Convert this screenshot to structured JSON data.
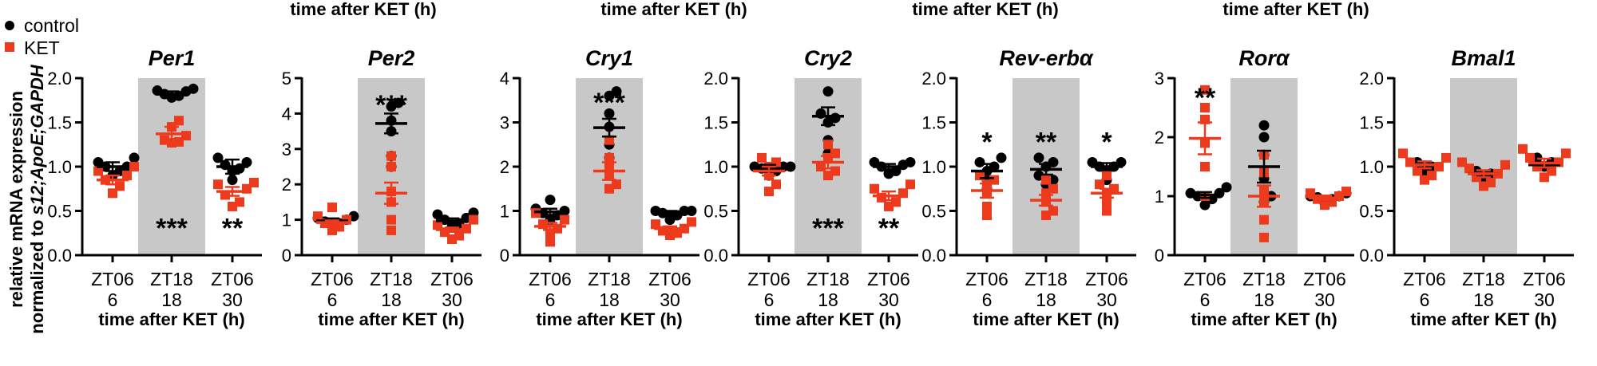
{
  "colors": {
    "control": "#000000",
    "KET": "#ee3a1c",
    "night_shading": "#c8c8c8"
  },
  "legend": {
    "control": "control",
    "KET": "KET"
  },
  "y_axis_label": {
    "line1": "relative mRNA expression",
    "line2_prefix": "normalized to ",
    "line2_italic": "s12;ApoE;GAPDH"
  },
  "top_captions": [
    "time after KET (h)",
    "time after KET (h)",
    "time after KET (h)",
    "time after KET (h)"
  ],
  "chart_data": [
    {
      "type": "scatter",
      "title": "Per1",
      "categories": [
        "ZT06",
        "ZT18",
        "ZT06"
      ],
      "hours": [
        "6",
        "18",
        "30"
      ],
      "xlabel": "time after KET (h)",
      "ylim": [
        0,
        2.0
      ],
      "yticks": [
        "0.0",
        "0.5",
        "1.0",
        "1.5",
        "2.0"
      ],
      "shaded_category": 1,
      "series": [
        {
          "name": "control",
          "mean": [
            1.0,
            1.82,
            1.0
          ],
          "sem": [
            0.05,
            0.03,
            0.08
          ],
          "points": [
            [
              0.9,
              0.95,
              1.0,
              1.0,
              1.05,
              1.1
            ],
            [
              1.78,
              1.8,
              1.82,
              1.85,
              1.86,
              1.88
            ],
            [
              0.85,
              0.95,
              0.98,
              1.02,
              1.05,
              1.1
            ]
          ]
        },
        {
          "name": "KET",
          "mean": [
            0.85,
            1.37,
            0.72
          ],
          "sem": [
            0.05,
            0.08,
            0.05
          ],
          "points": [
            [
              0.7,
              0.78,
              0.85,
              0.9,
              0.95,
              1.0
            ],
            [
              1.27,
              1.28,
              1.3,
              1.35,
              1.45,
              1.52
            ],
            [
              0.55,
              0.6,
              0.68,
              0.75,
              0.8,
              0.82
            ]
          ]
        }
      ],
      "annotations": [
        {
          "category": 1,
          "text": "***",
          "y": 0.33
        },
        {
          "category": 2,
          "text": "**",
          "y": 0.33
        }
      ]
    },
    {
      "type": "scatter",
      "title": "Per2",
      "categories": [
        "ZT06",
        "ZT18",
        "ZT06"
      ],
      "hours": [
        "6",
        "18",
        "30"
      ],
      "xlabel": "time after KET (h)",
      "ylim": [
        0,
        5
      ],
      "yticks": [
        "0",
        "1",
        "2",
        "3",
        "4",
        "5"
      ],
      "shaded_category": 1,
      "series": [
        {
          "name": "control",
          "mean": [
            0.97,
            3.72,
            0.97
          ],
          "sem": [
            0.07,
            0.28,
            0.07
          ],
          "points": [
            [
              0.8,
              0.9,
              0.95,
              1.0,
              1.05,
              1.1
            ],
            [
              2.5,
              2.8,
              3.5,
              3.8,
              4.2,
              4.3
            ],
            [
              0.8,
              0.9,
              1.0,
              1.05,
              1.15,
              1.2
            ]
          ]
        },
        {
          "name": "KET",
          "mean": [
            0.92,
            1.75,
            0.72
          ],
          "sem": [
            0.06,
            0.3,
            0.06
          ],
          "points": [
            [
              0.7,
              0.8,
              0.9,
              1.0,
              1.1,
              1.35
            ],
            [
              0.7,
              1.0,
              1.5,
              1.8,
              2.5,
              2.8
            ],
            [
              0.45,
              0.55,
              0.65,
              0.75,
              0.85,
              1.0
            ]
          ]
        }
      ],
      "annotations": [
        {
          "category": 1,
          "text": "***",
          "y": 4.3
        }
      ]
    },
    {
      "type": "scatter",
      "title": "Cry1",
      "categories": [
        "ZT06",
        "ZT18",
        "ZT06"
      ],
      "hours": [
        "6",
        "18",
        "30"
      ],
      "xlabel": "time after KET (h)",
      "ylim": [
        0,
        4
      ],
      "yticks": [
        "0",
        "1",
        "2",
        "3",
        "4"
      ],
      "shaded_category": 1,
      "series": [
        {
          "name": "control",
          "mean": [
            0.98,
            2.88,
            0.95
          ],
          "sem": [
            0.07,
            0.2,
            0.05
          ],
          "points": [
            [
              0.8,
              0.9,
              0.95,
              1.0,
              1.05,
              1.25
            ],
            [
              2.2,
              2.5,
              2.9,
              3.2,
              3.6,
              3.7
            ],
            [
              0.8,
              0.9,
              0.95,
              1.0,
              1.0,
              1.0
            ]
          ]
        },
        {
          "name": "KET",
          "mean": [
            0.65,
            1.9,
            0.6
          ],
          "sem": [
            0.08,
            0.2,
            0.05
          ],
          "points": [
            [
              0.3,
              0.5,
              0.6,
              0.7,
              0.8,
              0.95
            ],
            [
              1.5,
              1.6,
              1.8,
              2.0,
              2.2,
              2.6
            ],
            [
              0.45,
              0.5,
              0.55,
              0.6,
              0.7,
              0.75
            ]
          ]
        }
      ],
      "annotations": [
        {
          "category": 1,
          "text": "***",
          "y": 3.5
        }
      ]
    },
    {
      "type": "scatter",
      "title": "Cry2",
      "categories": [
        "ZT06",
        "ZT18",
        "ZT06"
      ],
      "hours": [
        "6",
        "18",
        "30"
      ],
      "xlabel": "time after KET (h)",
      "ylim": [
        0,
        2.0
      ],
      "yticks": [
        "0.0",
        "0.5",
        "1.0",
        "1.5",
        "2.0"
      ],
      "shaded_category": 1,
      "series": [
        {
          "name": "control",
          "mean": [
            0.98,
            1.57,
            1.0
          ],
          "sem": [
            0.04,
            0.1,
            0.03
          ],
          "points": [
            [
              0.9,
              0.95,
              0.98,
              1.0,
              1.0,
              1.0
            ],
            [
              1.15,
              1.3,
              1.5,
              1.55,
              1.6,
              1.85
            ],
            [
              0.92,
              0.95,
              1.0,
              1.02,
              1.05,
              1.05
            ]
          ]
        },
        {
          "name": "KET",
          "mean": [
            0.95,
            1.05,
            0.67
          ],
          "sem": [
            0.05,
            0.07,
            0.05
          ],
          "points": [
            [
              0.72,
              0.8,
              0.9,
              1.0,
              1.05,
              1.1
            ],
            [
              0.9,
              0.95,
              1.0,
              1.1,
              1.15,
              1.25
            ],
            [
              0.55,
              0.6,
              0.65,
              0.7,
              0.75,
              0.8
            ]
          ]
        }
      ],
      "annotations": [
        {
          "category": 1,
          "text": "***",
          "y": 0.33
        },
        {
          "category": 2,
          "text": "**",
          "y": 0.33
        }
      ]
    },
    {
      "type": "scatter",
      "title": "Rev-erbα",
      "categories": [
        "ZT06",
        "ZT18",
        "ZT06"
      ],
      "hours": [
        "6",
        "18",
        "30"
      ],
      "xlabel": "time after KET (h)",
      "ylim": [
        0,
        2.0
      ],
      "yticks": [
        "0.0",
        "0.5",
        "1.0",
        "1.5",
        "2.0"
      ],
      "shaded_category": 1,
      "series": [
        {
          "name": "control",
          "mean": [
            0.95,
            0.97,
            1.0
          ],
          "sem": [
            0.08,
            0.06,
            0.04
          ],
          "points": [
            [
              0.75,
              0.85,
              0.95,
              1.0,
              1.05,
              1.1
            ],
            [
              0.8,
              0.85,
              0.9,
              1.0,
              1.05,
              1.1
            ],
            [
              0.85,
              0.95,
              1.0,
              1.0,
              1.05,
              1.05
            ]
          ]
        },
        {
          "name": "KET",
          "mean": [
            0.73,
            0.62,
            0.7
          ],
          "sem": [
            0.08,
            0.06,
            0.05
          ],
          "points": [
            [
              0.45,
              0.55,
              0.7,
              0.8,
              0.85,
              0.9
            ],
            [
              0.45,
              0.5,
              0.6,
              0.7,
              0.75,
              0.85
            ],
            [
              0.5,
              0.6,
              0.7,
              0.75,
              0.8,
              0.9
            ]
          ]
        }
      ],
      "annotations": [
        {
          "category": 0,
          "text": "*",
          "y": 1.3
        },
        {
          "category": 1,
          "text": "**",
          "y": 1.3
        },
        {
          "category": 2,
          "text": "*",
          "y": 1.3
        }
      ]
    },
    {
      "type": "scatter",
      "title": "Rorα",
      "categories": [
        "ZT06",
        "ZT18",
        "ZT06"
      ],
      "hours": [
        "6",
        "18",
        "30"
      ],
      "xlabel": "time after KET (h)",
      "ylim": [
        0,
        3
      ],
      "yticks": [
        "0",
        "1",
        "2",
        "3"
      ],
      "shaded_category": 1,
      "series": [
        {
          "name": "control",
          "mean": [
            1.02,
            1.5,
            0.97
          ],
          "sem": [
            0.05,
            0.27,
            0.04
          ],
          "points": [
            [
              0.85,
              0.95,
              1.0,
              1.05,
              1.05,
              1.15
            ],
            [
              0.9,
              1.0,
              1.3,
              1.7,
              2.0,
              2.2
            ],
            [
              0.88,
              0.95,
              0.98,
              1.0,
              1.0,
              1.05
            ]
          ]
        },
        {
          "name": "KET",
          "mean": [
            1.98,
            1.0,
            0.97
          ],
          "sem": [
            0.27,
            0.18,
            0.04
          ],
          "points": [
            [
              1.0,
              1.5,
              1.9,
              2.3,
              2.5,
              2.8
            ],
            [
              0.3,
              0.6,
              0.9,
              1.1,
              1.4,
              1.7
            ],
            [
              0.85,
              0.9,
              0.95,
              1.0,
              1.05,
              1.08
            ]
          ]
        }
      ],
      "annotations": [
        {
          "category": 0,
          "text": "**",
          "y": 2.7
        }
      ]
    },
    {
      "type": "scatter",
      "title": "Bmal1",
      "categories": [
        "ZT06",
        "ZT18",
        "ZT06"
      ],
      "hours": [
        "6",
        "18",
        "30"
      ],
      "xlabel": "time after KET (h)",
      "ylim": [
        0,
        2.0
      ],
      "yticks": [
        "0.0",
        "0.5",
        "1.0",
        "1.5",
        "2.0"
      ],
      "shaded_category": 1,
      "series": [
        {
          "name": "control",
          "mean": [
            1.02,
            0.92,
            1.02
          ],
          "sem": [
            0.03,
            0.03,
            0.03
          ],
          "points": [
            [
              0.95,
              1.0,
              1.05
            ],
            [
              0.88,
              0.92,
              0.95
            ],
            [
              1.0,
              1.05,
              1.1
            ]
          ]
        },
        {
          "name": "KET",
          "mean": [
            1.02,
            0.92,
            1.04
          ],
          "sem": [
            0.04,
            0.04,
            0.05
          ],
          "points": [
            [
              0.85,
              0.9,
              0.95,
              1.0,
              1.05,
              1.1,
              1.15
            ],
            [
              0.78,
              0.82,
              0.88,
              0.92,
              0.98,
              1.02,
              1.05
            ],
            [
              0.88,
              0.95,
              1.0,
              1.05,
              1.1,
              1.15,
              1.2
            ]
          ]
        }
      ],
      "annotations": []
    }
  ]
}
